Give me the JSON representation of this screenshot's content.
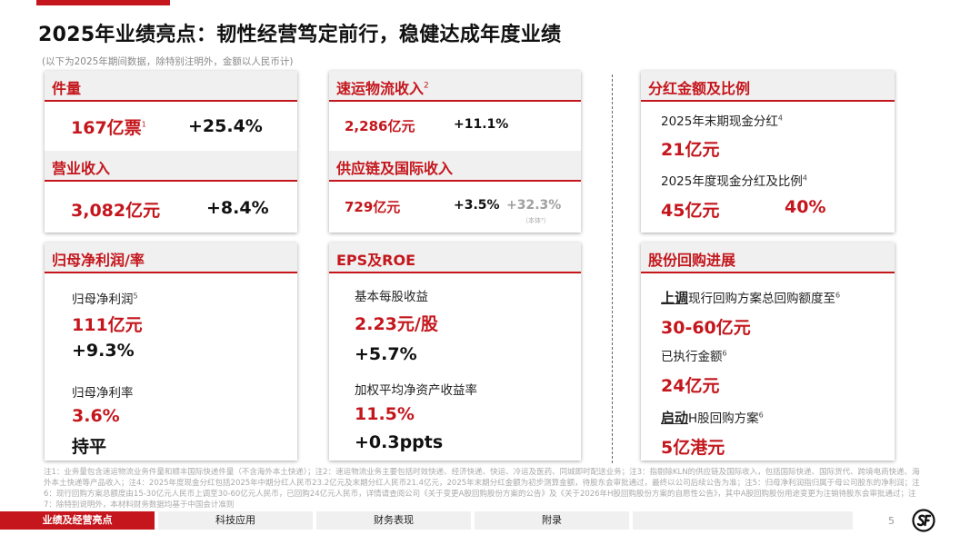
{
  "title": "2025年业绩亮点：韧性经营笃定前行，稳健达成年度业绩",
  "subtitle": "(以下为2025年期间数据，除特别注明外，金额以人民币计)",
  "volume": {
    "header": "件量",
    "value": "167亿票",
    "value_sup": "1",
    "growth": "+25.4%"
  },
  "revenue": {
    "header": "营业收入",
    "value": "3,082亿元",
    "growth": "+8.4%"
  },
  "express": {
    "header": "速运物流收入",
    "header_sup": "2",
    "value": "2,286亿元",
    "growth": "+11.1%"
  },
  "supply_chain": {
    "header": "供应链及国际收入",
    "value": "729亿元",
    "growth": "+3.5%",
    "growth2": "+32.3%",
    "growth2_note": "（本体³）"
  },
  "dividend": {
    "header": "分红金额及比例",
    "final_label": "2025年末期现金分红",
    "final_sup": "4",
    "final_value": "21亿元",
    "annual_label": "2025年度现金分红及比例",
    "annual_sup": "4",
    "annual_value": "45亿元",
    "annual_ratio": "40%"
  },
  "net_profit": {
    "header": "归母净利润/率",
    "profit_label": "归母净利润",
    "profit_sup": "5",
    "profit_value": "111亿元",
    "profit_growth": "+9.3%",
    "margin_label": "归母净利率",
    "margin_value": "3.6%",
    "margin_change": "持平"
  },
  "eps_roe": {
    "header": "EPS及ROE",
    "eps_label": "基本每股收益",
    "eps_value": "2.23元/股",
    "eps_growth": "+5.7%",
    "roe_label": "加权平均净资产收益率",
    "roe_value": "11.5%",
    "roe_change": "+0.3ppts"
  },
  "buyback": {
    "header": "股份回购进展",
    "line1_bold": "上调",
    "line1_rest": "现行回购方案总回购额度至",
    "line1_sup": "6",
    "line1_value": "30-60亿元",
    "executed_label": "已执行金额",
    "executed_sup": "6",
    "executed_value": "24亿元",
    "line3_bold": "启动",
    "line3_rest": "H股回购方案",
    "line3_sup": "6",
    "line3_value": "5亿港元"
  },
  "footnotes": "注1：业务量包含速运物流业务件量和顺丰国际快递件量（不含海外本土快递）；注2：速运物流业务主要包括时效快递、经济快递、快运、冷运及医药、同城即时配送业务；注3：指剔除KLN的供应链及国际收入，包括国际快递、国际货代、跨境电商快递、海外本土快递等产品收入；注4：2025年度现金分红包括2025年中期分红人民币23.2亿元及末期分红人民币21.4亿元，2025年末期分红金额为初步测算金额，待股东会审批通过，最终以公司后续公告为准；注5：归母净利润指归属于母公司股东的净利润；注6：现行回购方案总额度由15-30亿元人民币上调至30-60亿元人民币，已回购24亿元人民币，详情请查阅公司《关于变更A股回购股份方案的公告》及《关于2026年H股回购股份方案的自愿性公告》，其中A股回购股份用途变更为注销待股东会审批通过；注7：除特别说明外，本材料财务数据均基于中国会计准则",
  "nav": {
    "tab1": "业绩及经营亮点",
    "tab2": "科技应用",
    "tab3": "财务表现",
    "tab4": "附录",
    "tab5": ""
  },
  "page_number": "5",
  "colors": {
    "accent": "#c4161c",
    "header_bg": "#f0f0f0",
    "footnote": "#aaaaaa"
  }
}
